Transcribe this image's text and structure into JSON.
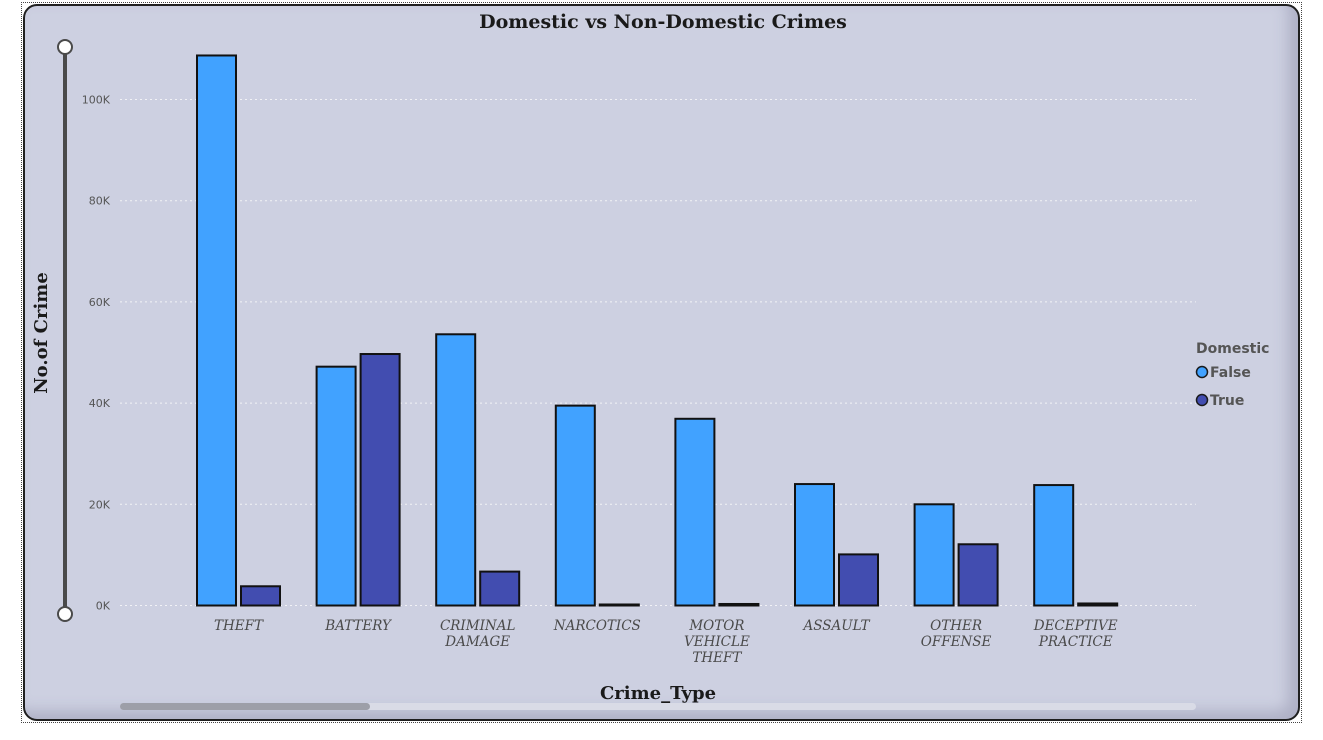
{
  "chart_data": {
    "type": "bar",
    "title": "Domestic vs Non-Domestic Crimes",
    "xlabel": "Crime_Type",
    "ylabel": "No.of Crime",
    "categories": [
      [
        "THEFT"
      ],
      [
        "BATTERY"
      ],
      [
        "CRIMINAL",
        "DAMAGE"
      ],
      [
        "NARCOTICS"
      ],
      [
        "MOTOR",
        "VEHICLE",
        "THEFT"
      ],
      [
        "ASSAULT"
      ],
      [
        "OTHER",
        "OFFENSE"
      ],
      [
        "DECEPTIVE",
        "PRACTICE"
      ]
    ],
    "series": [
      {
        "name": "False",
        "color": "#41a2ff",
        "values": [
          108700,
          47200,
          53600,
          39500,
          36900,
          24000,
          20000,
          23800
        ]
      },
      {
        "name": "True",
        "color": "#424db0",
        "values": [
          3800,
          49700,
          6700,
          200,
          300,
          10100,
          12100,
          400
        ]
      }
    ],
    "ylim": [
      0,
      110000
    ],
    "yticks": [
      0,
      20000,
      40000,
      60000,
      80000,
      100000
    ],
    "ytick_labels": [
      "0K",
      "20K",
      "40K",
      "60K",
      "80K",
      "100K"
    ],
    "grid": true,
    "legend": {
      "title": "Domestic",
      "placement": "right"
    }
  }
}
